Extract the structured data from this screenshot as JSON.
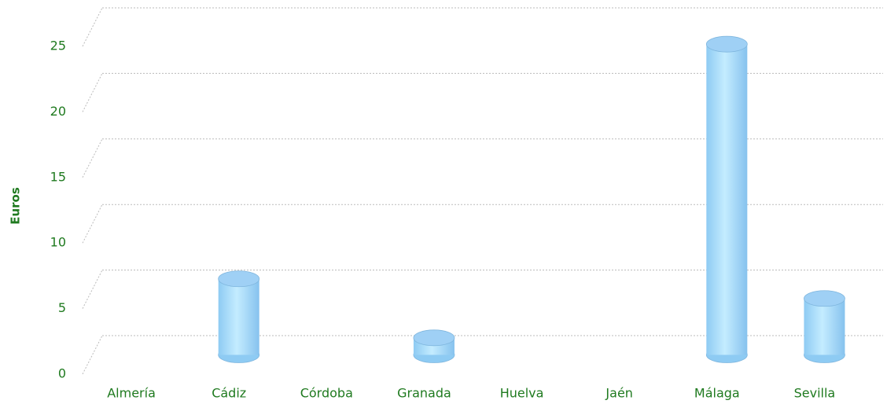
{
  "chart_data": {
    "type": "bar3d",
    "categories": [
      "Almería",
      "Cádiz",
      "Córdoba",
      "Granada",
      "Huelva",
      "Jaén",
      "Málaga",
      "Sevilla"
    ],
    "values": [
      0,
      5.8,
      0,
      1.3,
      0,
      0,
      23.7,
      4.3
    ],
    "color": "#a8dcfb",
    "y_label": "Euros",
    "ylim": [
      0,
      25
    ],
    "yticks": [
      0,
      5,
      10,
      15,
      20,
      25
    ],
    "grid": true
  }
}
